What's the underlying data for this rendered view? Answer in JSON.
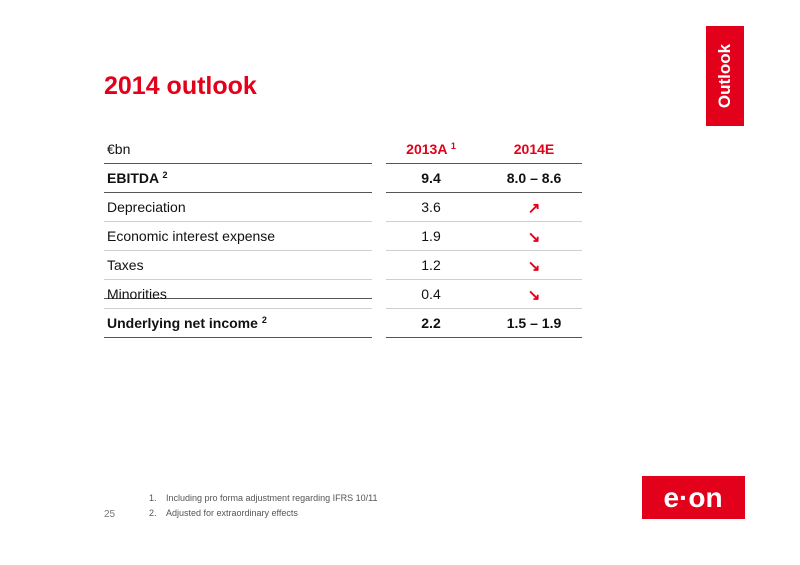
{
  "slide": {
    "title": "2014 outlook",
    "section_tab": "Outlook",
    "page_number": "25"
  },
  "table": {
    "headers": {
      "unit": "€bn",
      "col1": "2013A",
      "col1_sup": "1",
      "col2": "2014E"
    },
    "rows": [
      {
        "label": "EBITDA",
        "sup": "2",
        "v2013": "9.4",
        "v2014": "8.0 – 8.6",
        "bold": true
      },
      {
        "label": "Depreciation",
        "sup": "",
        "v2013": "3.6",
        "v2014": "↗",
        "bold": false
      },
      {
        "label": "Economic interest expense",
        "sup": "",
        "v2013": "1.9",
        "v2014": "↘",
        "bold": false
      },
      {
        "label": "Taxes",
        "sup": "",
        "v2013": "1.2",
        "v2014": "↘",
        "bold": false
      },
      {
        "label": "Minorities",
        "sup": "",
        "v2013": "0.4",
        "v2014": "↘",
        "bold": false
      },
      {
        "label": "Underlying net income",
        "sup": "2",
        "v2013": "2.2",
        "v2014": "1.5 – 1.9",
        "bold": true
      }
    ]
  },
  "footnotes": [
    {
      "num": "1.",
      "text": "Including pro forma adjustment regarding IFRS 10/11"
    },
    {
      "num": "2.",
      "text": "Adjusted for extraordinary effects"
    }
  ],
  "logo": {
    "text": "e·on"
  },
  "colors": {
    "accent": "#e2001a"
  }
}
